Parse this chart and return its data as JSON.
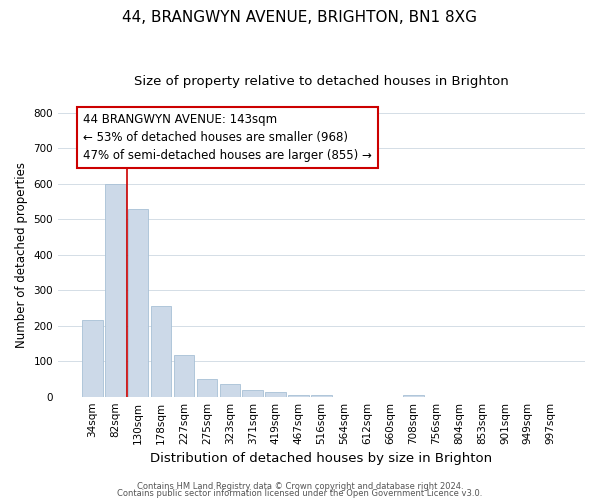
{
  "title": "44, BRANGWYN AVENUE, BRIGHTON, BN1 8XG",
  "subtitle": "Size of property relative to detached houses in Brighton",
  "xlabel": "Distribution of detached houses by size in Brighton",
  "ylabel": "Number of detached properties",
  "bar_labels": [
    "34sqm",
    "82sqm",
    "130sqm",
    "178sqm",
    "227sqm",
    "275sqm",
    "323sqm",
    "371sqm",
    "419sqm",
    "467sqm",
    "516sqm",
    "564sqm",
    "612sqm",
    "660sqm",
    "708sqm",
    "756sqm",
    "804sqm",
    "853sqm",
    "901sqm",
    "949sqm",
    "997sqm"
  ],
  "bar_heights": [
    215,
    600,
    530,
    255,
    118,
    50,
    35,
    20,
    12,
    5,
    5,
    0,
    0,
    0,
    5,
    0,
    0,
    0,
    0,
    0,
    0
  ],
  "bar_color": "#ccd9e8",
  "bar_edge_color": "#a8c0d6",
  "ylim": [
    0,
    800
  ],
  "yticks": [
    0,
    100,
    200,
    300,
    400,
    500,
    600,
    700,
    800
  ],
  "vline_color": "#cc0000",
  "annotation_text_line1": "44 BRANGWYN AVENUE: 143sqm",
  "annotation_text_line2": "← 53% of detached houses are smaller (968)",
  "annotation_text_line3": "47% of semi-detached houses are larger (855) →",
  "footnote1": "Contains HM Land Registry data © Crown copyright and database right 2024.",
  "footnote2": "Contains public sector information licensed under the Open Government Licence v3.0.",
  "background_color": "#ffffff",
  "grid_color": "#d4dde6",
  "title_fontsize": 11,
  "subtitle_fontsize": 9.5,
  "ylabel_fontsize": 8.5,
  "xlabel_fontsize": 9.5,
  "tick_fontsize": 7.5,
  "annot_fontsize": 8.5,
  "footnote_fontsize": 6
}
